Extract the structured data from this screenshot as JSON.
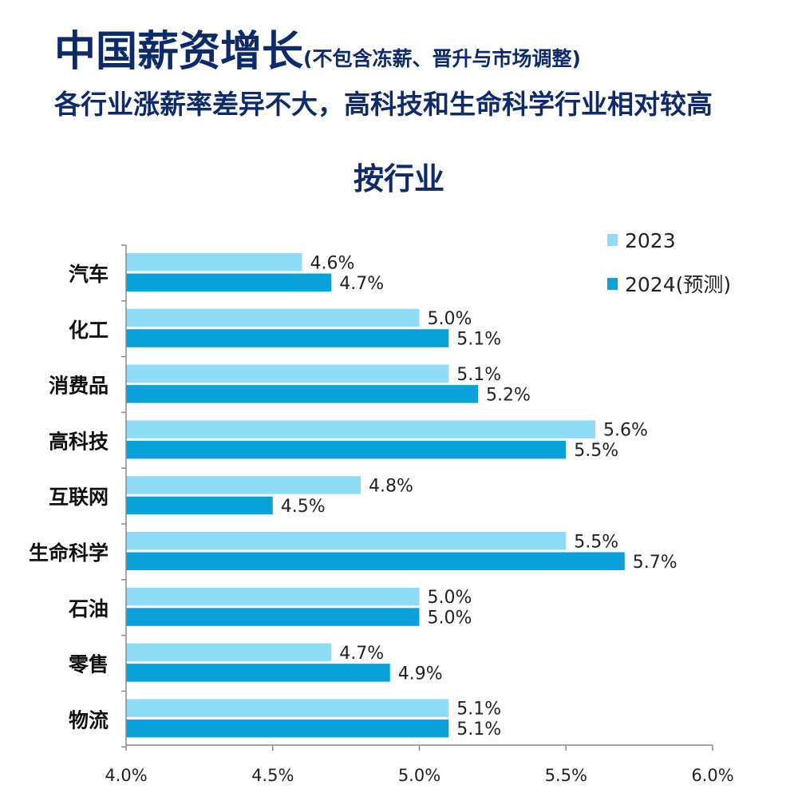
{
  "header": {
    "title": "中国薪资增长",
    "title_note": "(不包含冻薪、晋升与市场调整)",
    "subtitle": "各行业涨薪率差异不大，高科技和生命科学行业相对较高"
  },
  "chart_data": {
    "type": "bar",
    "orientation": "horizontal",
    "title": "按行业",
    "categories": [
      "汽车",
      "化工",
      "消费品",
      "高科技",
      "互联网",
      "生命科学",
      "石油",
      "零售",
      "物流"
    ],
    "series": [
      {
        "name": "2023",
        "color": "#8edcf7",
        "values": [
          4.6,
          5.0,
          5.1,
          5.6,
          4.8,
          5.5,
          5.0,
          4.7,
          5.1
        ]
      },
      {
        "name": "2024(预测)",
        "color": "#0aa0da",
        "values": [
          4.7,
          5.1,
          5.2,
          5.5,
          4.5,
          5.7,
          5.0,
          4.9,
          5.1
        ]
      }
    ],
    "data_labels": [
      [
        "4.6%",
        "5.0%",
        "5.1%",
        "5.6%",
        "4.8%",
        "5.5%",
        "5.0%",
        "4.7%",
        "5.1%"
      ],
      [
        "4.7%",
        "5.1%",
        "5.2%",
        "5.5%",
        "4.5%",
        "5.7%",
        "5.0%",
        "4.9%",
        "5.1%"
      ]
    ],
    "xlim": [
      4.0,
      6.0
    ],
    "x_ticks": [
      4.0,
      4.5,
      5.0,
      5.5,
      6.0
    ],
    "x_tick_labels": [
      "4.0%",
      "4.5%",
      "5.0%",
      "5.5%",
      "6.0%"
    ],
    "legend_position": "top-right",
    "grid": false
  }
}
